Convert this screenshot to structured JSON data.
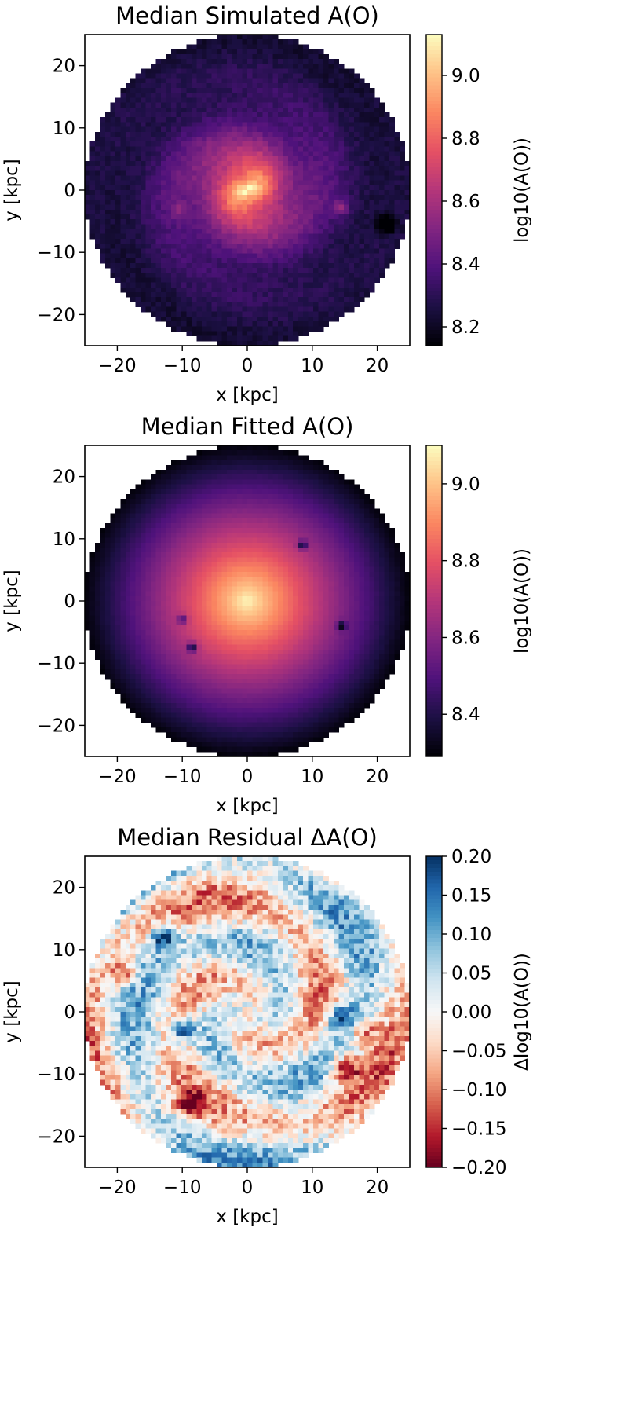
{
  "chart_data": [
    {
      "type": "heatmap",
      "title": "Median Simulated A(O)",
      "xlabel": "x [kpc]",
      "ylabel": "y [kpc]",
      "xlim": [
        -25,
        25
      ],
      "ylim": [
        -25,
        25
      ],
      "xticks": [
        -20,
        -10,
        0,
        10,
        20
      ],
      "yticks": [
        -20,
        -10,
        0,
        10,
        20
      ],
      "xtick_labels": [
        "−20",
        "−10",
        "0",
        "10",
        "20"
      ],
      "ytick_labels": [
        "−20",
        "−10",
        "0",
        "10",
        "20"
      ],
      "colormap": "magma",
      "colorbar": {
        "label": "log10(A(O))",
        "range": [
          8.14,
          9.13
        ],
        "ticks": [
          8.2,
          8.4,
          8.6,
          8.8,
          9.0
        ],
        "tick_labels": [
          "8.2",
          "8.4",
          "8.6",
          "8.8",
          "9.0"
        ]
      },
      "field": {
        "model": "spiral",
        "radius_kpc": 25,
        "center_value": 9.1,
        "edge_value": 8.22,
        "arm_amplitude": 0.07,
        "clumps": [
          [
            14.5,
            -2.8,
            0.2
          ],
          [
            -10.5,
            -3.2,
            0.12
          ],
          [
            21.5,
            -5.5,
            -0.45
          ]
        ]
      }
    },
    {
      "type": "heatmap",
      "title": "Median Fitted A(O)",
      "xlabel": "x [kpc]",
      "ylabel": "y [kpc]",
      "xlim": [
        -25,
        25
      ],
      "ylim": [
        -25,
        25
      ],
      "xticks": [
        -20,
        -10,
        0,
        10,
        20
      ],
      "yticks": [
        -20,
        -10,
        0,
        10,
        20
      ],
      "xtick_labels": [
        "−20",
        "−10",
        "0",
        "10",
        "20"
      ],
      "ytick_labels": [
        "−20",
        "−10",
        "0",
        "10",
        "20"
      ],
      "colormap": "magma",
      "colorbar": {
        "label": "log10(A(O))",
        "range": [
          8.29,
          9.1
        ],
        "ticks": [
          8.4,
          8.6,
          8.8,
          9.0
        ],
        "tick_labels": [
          "8.4",
          "8.6",
          "8.8",
          "9.0"
        ]
      },
      "field": {
        "model": "radial",
        "radius_kpc": 25,
        "center_value": 9.1,
        "edge_value": 8.3,
        "clumps": [
          [
            -10,
            -3,
            -0.25
          ],
          [
            -8.5,
            -7.5,
            -0.35
          ],
          [
            14.5,
            -4,
            -0.3
          ],
          [
            8.5,
            9,
            -0.3
          ]
        ]
      }
    },
    {
      "type": "heatmap",
      "title": "Median Residual ΔA(O)",
      "xlabel": "x [kpc]",
      "ylabel": "y [kpc]",
      "xlim": [
        -25,
        25
      ],
      "ylim": [
        -25,
        25
      ],
      "xticks": [
        -20,
        -10,
        0,
        10,
        20
      ],
      "yticks": [
        -20,
        -10,
        0,
        10,
        20
      ],
      "xtick_labels": [
        "−20",
        "−10",
        "0",
        "10",
        "20"
      ],
      "ytick_labels": [
        "−20",
        "−10",
        "0",
        "10",
        "20"
      ],
      "colormap": "RdBu",
      "colorbar": {
        "label": "Δlog10(A(O))",
        "range": [
          -0.2,
          0.2
        ],
        "ticks": [
          -0.2,
          -0.15,
          -0.1,
          -0.05,
          0.0,
          0.05,
          0.1,
          0.15,
          0.2
        ],
        "tick_labels": [
          "−0.20",
          "−0.15",
          "−0.10",
          "−0.05",
          "0.00",
          "0.05",
          "0.10",
          "0.15",
          "0.20"
        ]
      },
      "field": {
        "model": "residual",
        "radius_kpc": 25,
        "clumps": [
          [
            -13,
            12,
            0.2
          ],
          [
            -10,
            -3,
            0.19
          ],
          [
            14.5,
            -1,
            0.2
          ],
          [
            15,
            -9,
            -0.2
          ],
          [
            -9,
            -15,
            -0.18
          ],
          [
            -19,
            6,
            -0.14
          ],
          [
            18,
            -3,
            -0.12
          ]
        ]
      }
    }
  ]
}
